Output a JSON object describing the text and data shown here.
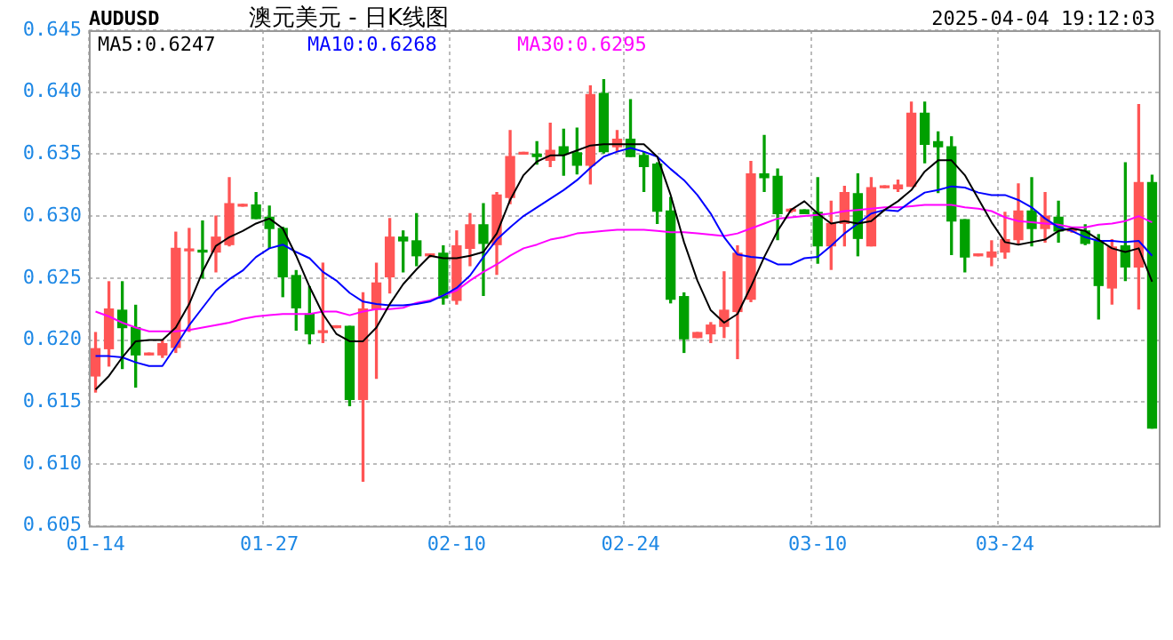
{
  "chart_data": {
    "type": "candlestick",
    "title": "澳元美元 - 日K线图",
    "subtitle": "AUDUSD",
    "annotations": [
      "2025-04-04 19:12:03"
    ],
    "categories": [
      "01-14",
      null,
      null,
      null,
      null,
      null,
      null,
      null,
      null,
      null,
      null,
      null,
      null,
      "01-27",
      null,
      null,
      null,
      null,
      null,
      null,
      null,
      null,
      null,
      null,
      null,
      null,
      null,
      "02-10",
      null,
      null,
      null,
      null,
      null,
      null,
      null,
      null,
      null,
      null,
      null,
      null,
      "02-24",
      null,
      null,
      null,
      null,
      null,
      null,
      null,
      null,
      null,
      null,
      null,
      null,
      null,
      "03-10",
      null,
      null,
      null,
      null,
      null,
      null,
      null,
      null,
      null,
      null,
      null,
      null,
      null,
      "03-24",
      null,
      null,
      null,
      null,
      null,
      null,
      null,
      null,
      null,
      null,
      null
    ],
    "ohlc": [
      [
        0.6171,
        0.6206,
        0.6158,
        0.6193
      ],
      [
        0.6193,
        0.6247,
        0.6179,
        0.6225
      ],
      [
        0.6224,
        0.6247,
        0.6177,
        0.621
      ],
      [
        0.621,
        0.6228,
        0.6162,
        0.6188
      ],
      [
        0.6188,
        0.6189,
        0.6188,
        0.6189
      ],
      [
        0.6188,
        0.62,
        0.6186,
        0.6197
      ],
      [
        0.6194,
        0.6287,
        0.619,
        0.6274
      ],
      [
        0.6272,
        0.629,
        0.6207,
        0.6273
      ],
      [
        0.6272,
        0.6296,
        0.625,
        0.6271
      ],
      [
        0.6271,
        0.63,
        0.6255,
        0.6283
      ],
      [
        0.6277,
        0.6331,
        0.6276,
        0.631
      ],
      [
        0.6308,
        0.6309,
        0.6308,
        0.6309
      ],
      [
        0.6309,
        0.6319,
        0.6298,
        0.6298
      ],
      [
        0.6299,
        0.6308,
        0.6274,
        0.629
      ],
      [
        0.629,
        0.6291,
        0.6235,
        0.6251
      ],
      [
        0.6252,
        0.6256,
        0.6208,
        0.6226
      ],
      [
        0.6221,
        0.6243,
        0.6197,
        0.6205
      ],
      [
        0.6206,
        0.6262,
        0.6198,
        0.6207
      ],
      [
        0.621,
        0.6211,
        0.621,
        0.6211
      ],
      [
        0.6211,
        0.6211,
        0.6147,
        0.6152
      ],
      [
        0.6152,
        0.6238,
        0.6086,
        0.6225
      ],
      [
        0.6225,
        0.6262,
        0.6169,
        0.6246
      ],
      [
        0.6251,
        0.6298,
        0.6238,
        0.6283
      ],
      [
        0.6283,
        0.6288,
        0.6255,
        0.628
      ],
      [
        0.628,
        0.6302,
        0.626,
        0.6268
      ],
      [
        0.6268,
        0.6269,
        0.6267,
        0.6269
      ],
      [
        0.627,
        0.6276,
        0.6229,
        0.6234
      ],
      [
        0.6232,
        0.6288,
        0.6229,
        0.6276
      ],
      [
        0.6274,
        0.6302,
        0.626,
        0.6293
      ],
      [
        0.6293,
        0.631,
        0.6236,
        0.6278
      ],
      [
        0.6277,
        0.6319,
        0.6253,
        0.6317
      ],
      [
        0.6315,
        0.6369,
        0.631,
        0.6348
      ],
      [
        0.635,
        0.6351,
        0.635,
        0.6351
      ],
      [
        0.635,
        0.636,
        0.6342,
        0.6348
      ],
      [
        0.6345,
        0.6375,
        0.634,
        0.6353
      ],
      [
        0.6356,
        0.637,
        0.6333,
        0.635
      ],
      [
        0.6351,
        0.6371,
        0.6334,
        0.6341
      ],
      [
        0.6341,
        0.6405,
        0.6326,
        0.6398
      ],
      [
        0.6399,
        0.641,
        0.6351,
        0.6352
      ],
      [
        0.6356,
        0.6369,
        0.6352,
        0.6362
      ],
      [
        0.6362,
        0.6394,
        0.6348,
        0.6348
      ],
      [
        0.6349,
        0.6352,
        0.632,
        0.634
      ],
      [
        0.6342,
        0.6343,
        0.6294,
        0.6304
      ],
      [
        0.6304,
        0.6315,
        0.623,
        0.6233
      ],
      [
        0.6235,
        0.6238,
        0.619,
        0.6201
      ],
      [
        0.6202,
        0.6206,
        0.6202,
        0.6206
      ],
      [
        0.6205,
        0.6214,
        0.6198,
        0.6212
      ],
      [
        0.6211,
        0.6255,
        0.6202,
        0.6224
      ],
      [
        0.6223,
        0.6276,
        0.6185,
        0.627
      ],
      [
        0.6233,
        0.6344,
        0.6231,
        0.6334
      ],
      [
        0.6334,
        0.6365,
        0.632,
        0.6331
      ],
      [
        0.6332,
        0.6338,
        0.6281,
        0.6302
      ],
      [
        0.6304,
        0.6306,
        0.6303,
        0.6305
      ],
      [
        0.6305,
        0.6305,
        0.6302,
        0.6302
      ],
      [
        0.6303,
        0.6331,
        0.6262,
        0.6276
      ],
      [
        0.6276,
        0.6312,
        0.6257,
        0.6294
      ],
      [
        0.6294,
        0.6324,
        0.6276,
        0.6319
      ],
      [
        0.6318,
        0.6334,
        0.6268,
        0.6282
      ],
      [
        0.6276,
        0.6331,
        0.6276,
        0.6323
      ],
      [
        0.6323,
        0.6324,
        0.6323,
        0.6324
      ],
      [
        0.6322,
        0.6329,
        0.632,
        0.6325
      ],
      [
        0.6324,
        0.6392,
        0.6324,
        0.6383
      ],
      [
        0.6383,
        0.6392,
        0.6343,
        0.6358
      ],
      [
        0.636,
        0.6368,
        0.6319,
        0.6356
      ],
      [
        0.6356,
        0.6364,
        0.6269,
        0.6296
      ],
      [
        0.6297,
        0.6297,
        0.6255,
        0.6267
      ],
      [
        0.6268,
        0.6269,
        0.6268,
        0.6269
      ],
      [
        0.6267,
        0.628,
        0.626,
        0.6271
      ],
      [
        0.6271,
        0.6303,
        0.6266,
        0.6281
      ],
      [
        0.6281,
        0.6326,
        0.6277,
        0.6304
      ],
      [
        0.6304,
        0.6331,
        0.6276,
        0.629
      ],
      [
        0.629,
        0.6319,
        0.6279,
        0.63
      ],
      [
        0.6299,
        0.6312,
        0.6279,
        0.6288
      ],
      [
        0.6288,
        0.629,
        0.6287,
        0.6289
      ],
      [
        0.6288,
        0.6293,
        0.6277,
        0.6278
      ],
      [
        0.628,
        0.6285,
        0.6217,
        0.6244
      ],
      [
        0.6242,
        0.6281,
        0.6229,
        0.6275
      ],
      [
        0.6276,
        0.6343,
        0.6248,
        0.6259
      ],
      [
        0.6259,
        0.639,
        0.6225,
        0.6327
      ],
      [
        0.6327,
        0.6333,
        0.6129,
        0.6129
      ]
    ],
    "colors": [
      "#ff5555",
      "#ff5555",
      "#00a000",
      "#00a000",
      "#ff5555",
      "#ff5555",
      "#ff5555",
      "#ff5555",
      "#00a000",
      "#ff5555",
      "#ff5555",
      "#ff5555",
      "#00a000",
      "#00a000",
      "#00a000",
      "#00a000",
      "#00a000",
      "#ff5555",
      "#ff5555",
      "#00a000",
      "#ff5555",
      "#ff5555",
      "#ff5555",
      "#00a000",
      "#00a000",
      "#ff5555",
      "#00a000",
      "#ff5555",
      "#ff5555",
      "#00a000",
      "#ff5555",
      "#ff5555",
      "#ff5555",
      "#00a000",
      "#ff5555",
      "#00a000",
      "#00a000",
      "#ff5555",
      "#00a000",
      "#ff5555",
      "#00a000",
      "#00a000",
      "#00a000",
      "#00a000",
      "#00a000",
      "#ff5555",
      "#ff5555",
      "#ff5555",
      "#ff5555",
      "#ff5555",
      "#00a000",
      "#00a000",
      "#ff5555",
      "#00a000",
      "#00a000",
      "#ff5555",
      "#ff5555",
      "#00a000",
      "#ff5555",
      "#ff5555",
      "#ff5555",
      "#ff5555",
      "#00a000",
      "#00a000",
      "#00a000",
      "#00a000",
      "#ff5555",
      "#ff5555",
      "#ff5555",
      "#ff5555",
      "#00a000",
      "#ff5555",
      "#00a000",
      "#ff5555",
      "#00a000",
      "#00a000",
      "#ff5555",
      "#00a000",
      "#ff5555",
      "#00a000"
    ],
    "series": [
      {
        "name": "MA5:0.6247",
        "type": "line",
        "color": "#000000",
        "values": [
          0.616,
          0.6171,
          0.6186,
          0.6199,
          0.62,
          0.62,
          0.621,
          0.6229,
          0.6255,
          0.6276,
          0.6283,
          0.6288,
          0.6294,
          0.6298,
          0.629,
          0.6268,
          0.6243,
          0.6221,
          0.6205,
          0.6199,
          0.6199,
          0.621,
          0.6229,
          0.6245,
          0.6257,
          0.6268,
          0.6266,
          0.6266,
          0.6268,
          0.6271,
          0.6286,
          0.6313,
          0.6333,
          0.6344,
          0.6349,
          0.6349,
          0.6353,
          0.6357,
          0.6358,
          0.6358,
          0.6358,
          0.6358,
          0.6348,
          0.6317,
          0.6279,
          0.6248,
          0.6224,
          0.6214,
          0.6221,
          0.6243,
          0.6267,
          0.6288,
          0.6305,
          0.6312,
          0.6302,
          0.6294,
          0.6296,
          0.6294,
          0.6296,
          0.6305,
          0.6312,
          0.6321,
          0.6336,
          0.6345,
          0.6345,
          0.6333,
          0.6314,
          0.6295,
          0.6279,
          0.6277,
          0.6279,
          0.6281,
          0.6288,
          0.629,
          0.6288,
          0.6281,
          0.6274,
          0.6271,
          0.6274,
          0.6247
        ]
      },
      {
        "name": "MA10:0.6268",
        "type": "line",
        "color": "#0000ff",
        "values": [
          0.6187,
          0.6187,
          0.6186,
          0.6182,
          0.6179,
          0.6179,
          0.6195,
          0.6212,
          0.6226,
          0.624,
          0.6249,
          0.6256,
          0.6267,
          0.6274,
          0.6277,
          0.6271,
          0.6266,
          0.6255,
          0.6248,
          0.6238,
          0.6231,
          0.6229,
          0.6228,
          0.6228,
          0.6229,
          0.6231,
          0.6236,
          0.6242,
          0.6252,
          0.6267,
          0.6281,
          0.6291,
          0.63,
          0.6307,
          0.6314,
          0.6321,
          0.6329,
          0.6339,
          0.6348,
          0.6352,
          0.6355,
          0.6352,
          0.6348,
          0.6338,
          0.6329,
          0.6317,
          0.6302,
          0.6283,
          0.6269,
          0.6267,
          0.6266,
          0.6261,
          0.6261,
          0.6266,
          0.6267,
          0.6276,
          0.6286,
          0.6294,
          0.6302,
          0.6305,
          0.6304,
          0.6312,
          0.6319,
          0.6321,
          0.6324,
          0.6323,
          0.6319,
          0.6317,
          0.6317,
          0.6313,
          0.6307,
          0.6298,
          0.6291,
          0.6288,
          0.6283,
          0.628,
          0.628,
          0.6279,
          0.628,
          0.6268
        ]
      },
      {
        "name": "MA30:0.6295",
        "type": "line",
        "color": "#ff00ff",
        "values": [
          0.6223,
          0.6219,
          0.6214,
          0.621,
          0.6207,
          0.6207,
          0.6207,
          0.6208,
          0.621,
          0.6212,
          0.6214,
          0.6217,
          0.6219,
          0.622,
          0.6221,
          0.6221,
          0.6221,
          0.6223,
          0.6223,
          0.622,
          0.6223,
          0.6225,
          0.6225,
          0.6226,
          0.623,
          0.6232,
          0.6236,
          0.624,
          0.6248,
          0.6255,
          0.6261,
          0.6268,
          0.6274,
          0.6277,
          0.6281,
          0.6283,
          0.6286,
          0.6287,
          0.6288,
          0.6289,
          0.6289,
          0.6289,
          0.6288,
          0.6287,
          0.6287,
          0.6286,
          0.6285,
          0.6284,
          0.6286,
          0.629,
          0.6294,
          0.6298,
          0.6299,
          0.63,
          0.6301,
          0.6302,
          0.6304,
          0.6305,
          0.6306,
          0.6307,
          0.6307,
          0.6308,
          0.6309,
          0.6309,
          0.6309,
          0.6307,
          0.6306,
          0.6304,
          0.6299,
          0.6296,
          0.6295,
          0.6294,
          0.6293,
          0.6291,
          0.6291,
          0.6293,
          0.6294,
          0.6296,
          0.63,
          0.6295
        ]
      }
    ],
    "ylim": [
      0.605,
      0.645
    ],
    "yticks": [
      0.605,
      {
        "value": 0.61,
        "label": "0.610"
      },
      0.615,
      {
        "value": 0.62,
        "label": "0.620"
      },
      0.625,
      {
        "value": 0.63,
        "label": "0.630"
      },
      0.635,
      {
        "value": 0.64,
        "label": "0.640"
      },
      0.645
    ],
    "grid": true,
    "legend": "top left",
    "marker": "none"
  }
}
